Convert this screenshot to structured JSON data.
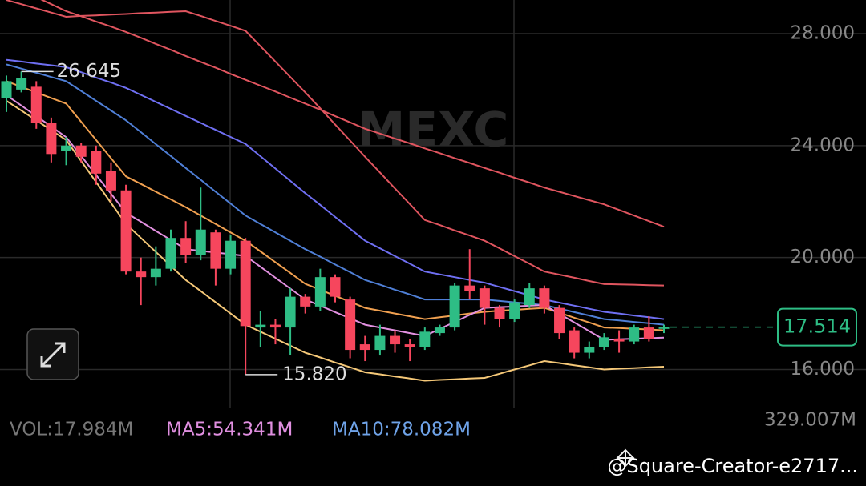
{
  "chart_data": {
    "type": "candlestick",
    "watermark": "MEXC",
    "open": [
      25.7,
      26.0,
      26.1,
      24.8,
      23.8,
      24.0,
      23.8,
      23.1,
      22.4,
      19.5,
      19.3,
      19.6,
      20.7,
      20.1,
      20.9,
      19.6,
      20.6,
      17.5,
      17.6,
      17.5,
      18.6,
      18.25,
      19.3,
      18.5,
      16.9,
      16.7,
      17.2,
      16.9,
      16.8,
      17.3,
      17.5,
      19.0,
      18.9,
      18.2,
      17.8,
      18.3,
      18.9,
      18.2,
      17.4,
      16.6,
      16.8,
      17.1,
      17.0,
      17.5,
      17.45
    ],
    "high": [
      26.5,
      26.645,
      26.3,
      25.0,
      24.3,
      24.1,
      24.0,
      23.4,
      22.6,
      20.0,
      20.4,
      21.0,
      21.3,
      22.5,
      21.0,
      20.8,
      20.7,
      18.1,
      17.8,
      18.9,
      18.7,
      19.6,
      19.4,
      18.6,
      17.2,
      17.6,
      17.4,
      17.1,
      17.5,
      17.6,
      19.1,
      20.3,
      19.0,
      18.3,
      18.5,
      19.1,
      19.0,
      18.3,
      17.5,
      17.0,
      17.3,
      17.4,
      17.6,
      17.9,
      17.6
    ],
    "low": [
      25.2,
      25.9,
      24.6,
      23.4,
      23.3,
      23.4,
      22.6,
      22.0,
      19.4,
      18.3,
      19.0,
      19.5,
      19.8,
      19.9,
      19.0,
      19.4,
      15.82,
      16.8,
      16.9,
      16.5,
      18.0,
      18.1,
      18.4,
      16.4,
      16.3,
      16.5,
      16.6,
      16.3,
      16.7,
      17.2,
      17.4,
      18.5,
      17.6,
      17.5,
      17.7,
      18.2,
      18.0,
      17.1,
      16.4,
      16.4,
      16.7,
      16.6,
      16.9,
      17.0,
      17.3
    ],
    "close": [
      26.3,
      26.4,
      24.8,
      23.7,
      24.0,
      23.6,
      23.0,
      22.4,
      19.5,
      19.3,
      19.6,
      20.7,
      20.1,
      21.0,
      19.6,
      20.6,
      17.55,
      17.6,
      17.5,
      18.6,
      18.25,
      19.3,
      18.6,
      16.7,
      16.7,
      17.2,
      16.9,
      16.8,
      17.35,
      17.5,
      19.0,
      18.8,
      18.2,
      17.8,
      18.4,
      18.9,
      18.2,
      17.3,
      16.6,
      16.8,
      17.15,
      17.0,
      17.5,
      17.1,
      17.514
    ],
    "up_color": "#2ebd85",
    "down_color": "#f6465d",
    "lines": [
      {
        "color": "#e0555f",
        "values": [
          29.8,
          29.55,
          29.3,
          29.05,
          28.8,
          28.62,
          28.43,
          28.25,
          28.06,
          27.85,
          27.63,
          27.42,
          27.2,
          26.99,
          26.78,
          26.56,
          26.35,
          26.14,
          25.93,
          25.71,
          25.5,
          25.28,
          25.05,
          24.83,
          24.6,
          24.43,
          24.25,
          24.08,
          23.9,
          23.73,
          23.55,
          23.38,
          23.2,
          23.03,
          22.85,
          22.68,
          22.5,
          22.35,
          22.2,
          22.05,
          21.9,
          21.7,
          21.5,
          21.3,
          21.1
        ]
      },
      {
        "color": "#e0555f",
        "values": [
          29.2,
          29.05,
          28.9,
          28.75,
          28.6,
          28.63,
          28.65,
          28.68,
          28.7,
          28.73,
          28.75,
          28.78,
          28.8,
          28.63,
          28.45,
          28.28,
          28.1,
          27.55,
          27.0,
          26.45,
          25.9,
          25.33,
          24.75,
          24.18,
          23.6,
          23.04,
          22.47,
          21.91,
          21.34,
          21.16,
          20.97,
          20.79,
          20.6,
          20.33,
          20.05,
          19.78,
          19.5,
          19.39,
          19.28,
          19.16,
          19.05,
          19.04,
          19.03,
          19.01,
          19.0
        ]
      },
      {
        "color": "#6f6ff2",
        "values": [
          27.06,
          27.0,
          26.93,
          26.87,
          26.8,
          26.62,
          26.43,
          26.25,
          26.06,
          25.81,
          25.56,
          25.31,
          25.06,
          24.81,
          24.56,
          24.31,
          24.06,
          23.62,
          23.18,
          22.74,
          22.3,
          21.88,
          21.45,
          21.03,
          20.6,
          20.33,
          20.05,
          19.78,
          19.5,
          19.4,
          19.3,
          19.2,
          19.1,
          18.95,
          18.8,
          18.65,
          18.5,
          18.39,
          18.28,
          18.17,
          18.06,
          18.0,
          17.93,
          17.87,
          17.8
        ]
      },
      {
        "color": "#4f7fd6",
        "values": [
          26.9,
          26.75,
          26.6,
          26.45,
          26.3,
          25.95,
          25.6,
          25.25,
          24.9,
          24.48,
          24.05,
          23.63,
          23.2,
          22.78,
          22.35,
          21.93,
          21.5,
          21.2,
          20.9,
          20.6,
          20.3,
          20.03,
          19.75,
          19.48,
          19.2,
          19.03,
          18.85,
          18.68,
          18.5,
          18.5,
          18.5,
          18.5,
          18.5,
          18.45,
          18.4,
          18.35,
          18.3,
          18.18,
          18.05,
          17.93,
          17.8,
          17.75,
          17.7,
          17.65,
          17.6
        ]
      },
      {
        "color": "#f0a050",
        "values": [
          26.3,
          26.1,
          25.9,
          25.7,
          25.5,
          24.85,
          24.2,
          23.55,
          22.9,
          22.63,
          22.35,
          22.08,
          21.8,
          21.5,
          21.2,
          20.9,
          20.6,
          20.22,
          19.83,
          19.45,
          19.06,
          18.85,
          18.63,
          18.42,
          18.2,
          18.1,
          18.0,
          17.9,
          17.8,
          17.87,
          17.93,
          18.0,
          18.06,
          18.1,
          18.13,
          18.17,
          18.2,
          18.03,
          17.85,
          17.68,
          17.5,
          17.48,
          17.45,
          17.43,
          17.4
        ]
      },
      {
        "color": "#e290e0",
        "values": [
          25.8,
          25.43,
          25.05,
          24.68,
          24.3,
          23.63,
          22.95,
          22.28,
          21.6,
          21.28,
          20.95,
          20.63,
          20.3,
          20.24,
          20.18,
          20.12,
          20.06,
          19.67,
          19.28,
          18.89,
          18.5,
          18.28,
          18.05,
          17.83,
          17.6,
          17.5,
          17.4,
          17.3,
          17.2,
          17.45,
          17.7,
          17.95,
          18.2,
          18.23,
          18.25,
          18.28,
          18.3,
          17.99,
          17.68,
          17.37,
          17.06,
          17.08,
          17.1,
          17.12,
          17.14
        ]
      },
      {
        "color": "#f5c878",
        "values": [
          25.6,
          25.25,
          24.9,
          24.55,
          24.2,
          23.45,
          22.7,
          21.95,
          21.2,
          20.7,
          20.2,
          19.7,
          19.2,
          18.8,
          18.4,
          18.0,
          17.6,
          17.35,
          17.1,
          16.85,
          16.6,
          16.43,
          16.25,
          16.08,
          15.9,
          15.83,
          15.75,
          15.68,
          15.6,
          15.63,
          15.65,
          15.68,
          15.7,
          15.85,
          16.0,
          16.15,
          16.3,
          16.23,
          16.15,
          16.08,
          16.0,
          16.03,
          16.05,
          16.08,
          16.1
        ]
      }
    ],
    "ylim": [
      14.9,
      29.2
    ],
    "yticks": [
      {
        "value": 16,
        "label": "16.000"
      },
      {
        "value": 20,
        "label": "20.000"
      },
      {
        "value": 24,
        "label": "24.000"
      },
      {
        "value": 28,
        "label": "28.000"
      }
    ],
    "grid": true,
    "high_mark": {
      "value": 26.645,
      "label": "26.645"
    },
    "low_mark": {
      "value": 15.82,
      "label": "15.820"
    },
    "last_price": {
      "value": 17.514,
      "label": "17.514"
    },
    "volume": {
      "vol": "VOL:17.984M",
      "ma5": "MA5:54.341M",
      "ma10": "MA10:78.082M",
      "axis_max": "329.007M"
    },
    "credit": "@Square-Creator-e2717..."
  }
}
